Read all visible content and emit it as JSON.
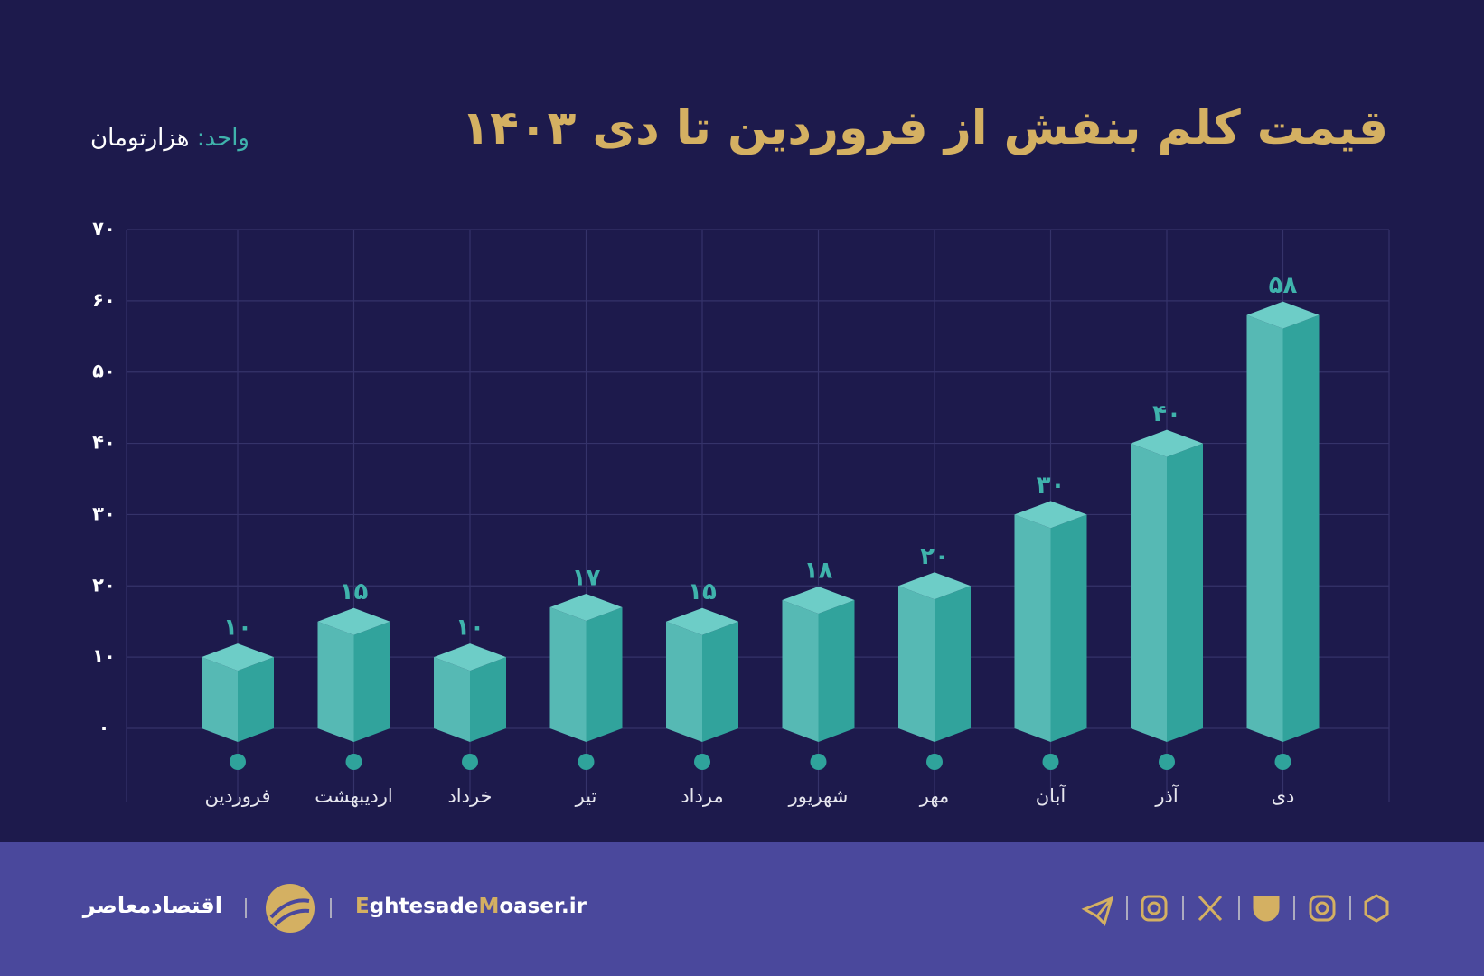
{
  "chart_data": {
    "type": "bar3d",
    "title": "قیمت کلم بنفش از فروردین تا دی ۱۴۰۳",
    "unit_label": "واحد:",
    "unit": "هزارتومان",
    "categories": [
      "فروردین",
      "اردیبهشت",
      "خرداد",
      "تیر",
      "مرداد",
      "شهریور",
      "مهر",
      "آبان",
      "آذر",
      "دی"
    ],
    "values": [
      10,
      15,
      10,
      17,
      15,
      18,
      20,
      30,
      40,
      58
    ],
    "value_labels": [
      "۱۰",
      "۱۵",
      "۱۰",
      "۱۷",
      "۱۵",
      "۱۸",
      "۲۰",
      "۳۰",
      "۴۰",
      "۵۸"
    ],
    "color": "#31a39c",
    "ylim": [
      0,
      70
    ],
    "yticks": [
      {
        "value": 0,
        "label": "۰"
      },
      {
        "value": 10,
        "label": "۱۰"
      },
      {
        "value": 20,
        "label": "۲۰"
      },
      {
        "value": 30,
        "label": "۳۰"
      },
      {
        "value": 40,
        "label": "۴۰"
      },
      {
        "value": 50,
        "label": "۵۰"
      },
      {
        "value": 60,
        "label": "۶۰"
      },
      {
        "value": 70,
        "label": "۷۰"
      }
    ],
    "grid": true
  },
  "footer": {
    "brand": "اقتصادمعاصر",
    "site_parts": [
      "E",
      "ghtesade",
      "M",
      "oaser.ir"
    ]
  }
}
